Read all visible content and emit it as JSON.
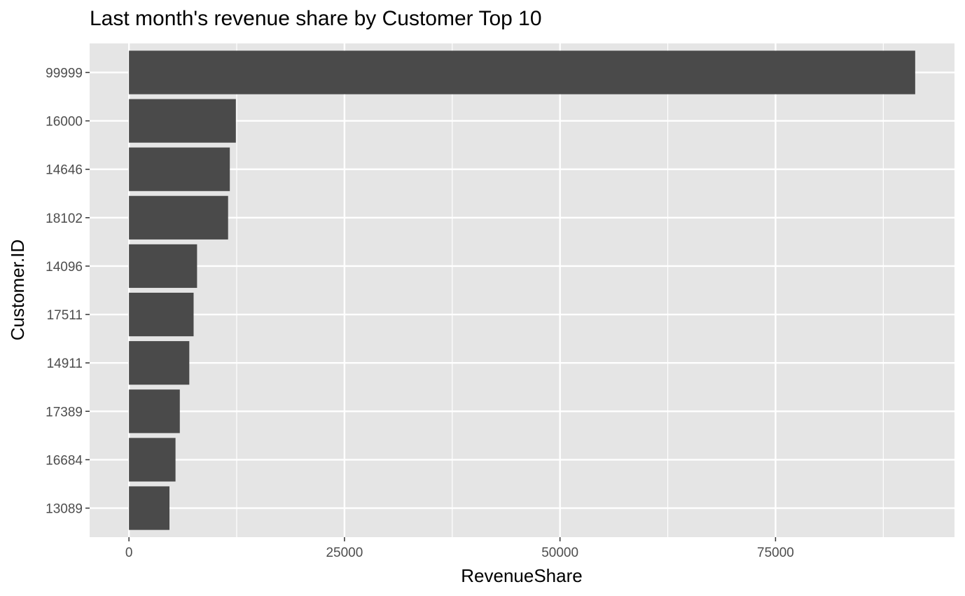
{
  "chart_data": {
    "type": "bar",
    "orientation": "horizontal",
    "title": "Last month's revenue share by Customer Top 10",
    "xlabel": "RevenueShare",
    "ylabel": "Customer.ID",
    "categories": [
      "99999",
      "16000",
      "14646",
      "18102",
      "14096",
      "17511",
      "14911",
      "17389",
      "16684",
      "13089"
    ],
    "values": [
      91200,
      12400,
      11700,
      11500,
      7900,
      7500,
      7000,
      5900,
      5400,
      4700
    ],
    "xlim": [
      -4560,
      95760
    ],
    "xticks": [
      0,
      25000,
      50000,
      75000
    ],
    "xtick_labels": [
      "0",
      "25000",
      "50000",
      "75000"
    ],
    "grid": true,
    "legend": "none",
    "colors": {
      "panel": "#e5e5e5",
      "grid": "#ffffff",
      "bar": "#4a4a4a",
      "tick_text": "#4d4d4d",
      "tick_mark": "#333333"
    }
  }
}
